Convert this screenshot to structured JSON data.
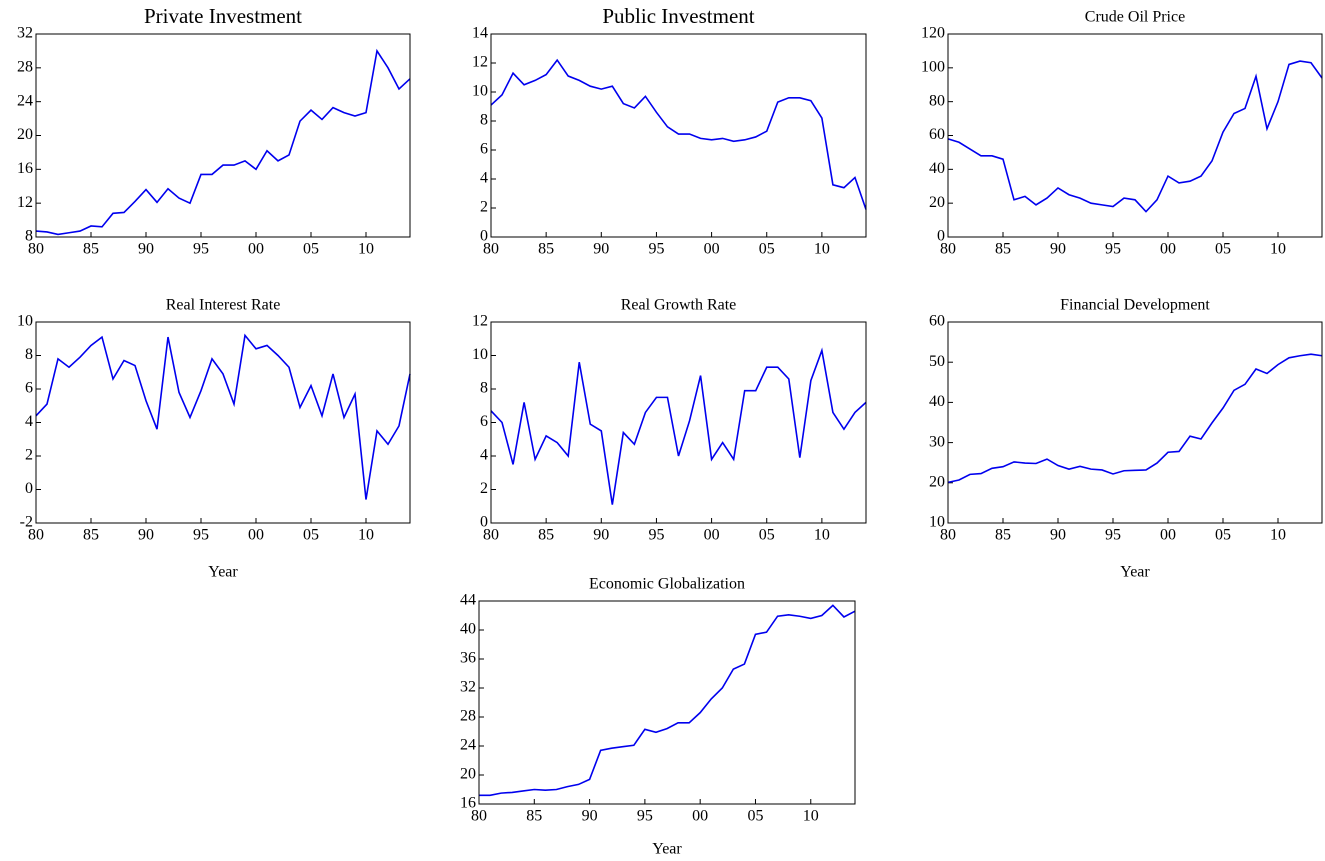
{
  "chart_data": [
    {
      "type": "line",
      "title": "Private Investment",
      "color": "#0000ee",
      "x": [
        1980,
        1981,
        1982,
        1983,
        1984,
        1985,
        1986,
        1987,
        1988,
        1989,
        1990,
        1991,
        1992,
        1993,
        1994,
        1995,
        1996,
        1997,
        1998,
        1999,
        2000,
        2001,
        2002,
        2003,
        2004,
        2005,
        2006,
        2007,
        2008,
        2009,
        2010,
        2011,
        2012,
        2013,
        2014
      ],
      "values": [
        8.7,
        8.6,
        8.3,
        8.5,
        8.7,
        9.3,
        9.2,
        10.8,
        10.9,
        12.2,
        13.6,
        12.1,
        13.7,
        12.6,
        12.0,
        15.4,
        15.4,
        16.5,
        16.5,
        17.0,
        16.0,
        18.2,
        17.0,
        17.7,
        21.7,
        23.0,
        21.9,
        23.3,
        22.7,
        22.3,
        22.7,
        30.0,
        28.0,
        25.5,
        26.7
      ],
      "xlim": [
        1980,
        2014
      ],
      "xticks": [
        {
          "value": 1980,
          "label": "80"
        },
        {
          "value": 1985,
          "label": "85"
        },
        {
          "value": 1990,
          "label": "90"
        },
        {
          "value": 1995,
          "label": "95"
        },
        {
          "value": 2000,
          "label": "00"
        },
        {
          "value": 2005,
          "label": "05"
        },
        {
          "value": 2010,
          "label": "10"
        }
      ],
      "ylim": [
        8,
        32
      ],
      "yticks": [
        8,
        12,
        16,
        20,
        24,
        28,
        32
      ]
    },
    {
      "type": "line",
      "title": "Public Investment",
      "color": "#0000ee",
      "x": [
        1980,
        1981,
        1982,
        1983,
        1984,
        1985,
        1986,
        1987,
        1988,
        1989,
        1990,
        1991,
        1992,
        1993,
        1994,
        1995,
        1996,
        1997,
        1998,
        1999,
        2000,
        2001,
        2002,
        2003,
        2004,
        2005,
        2006,
        2007,
        2008,
        2009,
        2010,
        2011,
        2012,
        2013,
        2014
      ],
      "values": [
        9.1,
        9.8,
        11.3,
        10.5,
        10.8,
        11.2,
        12.2,
        11.1,
        10.8,
        10.4,
        10.2,
        10.4,
        9.2,
        8.9,
        9.7,
        8.6,
        7.6,
        7.1,
        7.1,
        6.8,
        6.7,
        6.8,
        6.6,
        6.7,
        6.9,
        7.3,
        9.3,
        9.6,
        9.6,
        9.4,
        8.2,
        3.6,
        3.4,
        4.1,
        1.9
      ],
      "xlim": [
        1980,
        2014
      ],
      "xticks": [
        {
          "value": 1980,
          "label": "80"
        },
        {
          "value": 1985,
          "label": "85"
        },
        {
          "value": 1990,
          "label": "90"
        },
        {
          "value": 1995,
          "label": "95"
        },
        {
          "value": 2000,
          "label": "00"
        },
        {
          "value": 2005,
          "label": "05"
        },
        {
          "value": 2010,
          "label": "10"
        }
      ],
      "ylim": [
        0,
        14
      ],
      "yticks": [
        0,
        2,
        4,
        6,
        8,
        10,
        12,
        14
      ]
    },
    {
      "type": "line",
      "title": "Crude Oil Price",
      "color": "#0000ee",
      "x": [
        1980,
        1981,
        1982,
        1983,
        1984,
        1985,
        1986,
        1987,
        1988,
        1989,
        1990,
        1991,
        1992,
        1993,
        1994,
        1995,
        1996,
        1997,
        1998,
        1999,
        2000,
        2001,
        2002,
        2003,
        2004,
        2005,
        2006,
        2007,
        2008,
        2009,
        2010,
        2011,
        2012,
        2013,
        2014
      ],
      "values": [
        58,
        56,
        52,
        48,
        48,
        46,
        22,
        24,
        19,
        23,
        29,
        25,
        23,
        20,
        19,
        18,
        23,
        22,
        15,
        22,
        36,
        32,
        33,
        36,
        45,
        62,
        73,
        76,
        95,
        64,
        80,
        102,
        104,
        103,
        94
      ],
      "xlim": [
        1980,
        2014
      ],
      "xticks": [
        {
          "value": 1980,
          "label": "80"
        },
        {
          "value": 1985,
          "label": "85"
        },
        {
          "value": 1990,
          "label": "90"
        },
        {
          "value": 1995,
          "label": "95"
        },
        {
          "value": 2000,
          "label": "00"
        },
        {
          "value": 2005,
          "label": "05"
        },
        {
          "value": 2010,
          "label": "10"
        }
      ],
      "ylim": [
        0,
        120
      ],
      "yticks": [
        0,
        20,
        40,
        60,
        80,
        100,
        120
      ]
    },
    {
      "type": "line",
      "title": "Real Interest Rate",
      "xlabel": "Year",
      "color": "#0000ee",
      "x": [
        1980,
        1981,
        1982,
        1983,
        1984,
        1985,
        1986,
        1987,
        1988,
        1989,
        1990,
        1991,
        1992,
        1993,
        1994,
        1995,
        1996,
        1997,
        1998,
        1999,
        2000,
        2001,
        2002,
        2003,
        2004,
        2005,
        2006,
        2007,
        2008,
        2009,
        2010,
        2011,
        2012,
        2013,
        2014
      ],
      "values": [
        4.4,
        5.1,
        7.8,
        7.3,
        7.9,
        8.6,
        9.1,
        6.6,
        7.7,
        7.4,
        5.3,
        3.6,
        9.1,
        5.8,
        4.3,
        5.9,
        7.8,
        6.9,
        5.1,
        9.2,
        8.4,
        8.6,
        8.0,
        7.3,
        4.9,
        6.2,
        4.4,
        6.9,
        4.3,
        5.7,
        -0.6,
        3.5,
        2.7,
        3.8,
        6.9
      ],
      "xlim": [
        1980,
        2014
      ],
      "xticks": [
        {
          "value": 1980,
          "label": "80"
        },
        {
          "value": 1985,
          "label": "85"
        },
        {
          "value": 1990,
          "label": "90"
        },
        {
          "value": 1995,
          "label": "95"
        },
        {
          "value": 2000,
          "label": "00"
        },
        {
          "value": 2005,
          "label": "05"
        },
        {
          "value": 2010,
          "label": "10"
        }
      ],
      "ylim": [
        -2,
        10
      ],
      "yticks": [
        -2,
        0,
        2,
        4,
        6,
        8,
        10
      ]
    },
    {
      "type": "line",
      "title": "Real Growth Rate",
      "color": "#0000ee",
      "x": [
        1980,
        1981,
        1982,
        1983,
        1984,
        1985,
        1986,
        1987,
        1988,
        1989,
        1990,
        1991,
        1992,
        1993,
        1994,
        1995,
        1996,
        1997,
        1998,
        1999,
        2000,
        2001,
        2002,
        2003,
        2004,
        2005,
        2006,
        2007,
        2008,
        2009,
        2010,
        2011,
        2012,
        2013,
        2014
      ],
      "values": [
        6.7,
        6.0,
        3.5,
        7.2,
        3.8,
        5.2,
        4.8,
        4.0,
        9.6,
        5.9,
        5.5,
        1.1,
        5.4,
        4.7,
        6.6,
        7.5,
        7.5,
        4.0,
        6.1,
        8.8,
        3.8,
        4.8,
        3.8,
        7.9,
        7.9,
        9.3,
        9.3,
        8.6,
        3.9,
        8.5,
        10.3,
        6.6,
        5.6,
        6.6,
        7.2
      ],
      "xlim": [
        1980,
        2014
      ],
      "xticks": [
        {
          "value": 1980,
          "label": "80"
        },
        {
          "value": 1985,
          "label": "85"
        },
        {
          "value": 1990,
          "label": "90"
        },
        {
          "value": 1995,
          "label": "95"
        },
        {
          "value": 2000,
          "label": "00"
        },
        {
          "value": 2005,
          "label": "05"
        },
        {
          "value": 2010,
          "label": "10"
        }
      ],
      "ylim": [
        0,
        12
      ],
      "yticks": [
        0,
        2,
        4,
        6,
        8,
        10,
        12
      ]
    },
    {
      "type": "line",
      "title": "Financial Development",
      "xlabel": "Year",
      "color": "#0000ee",
      "x": [
        1980,
        1981,
        1982,
        1983,
        1984,
        1985,
        1986,
        1987,
        1988,
        1989,
        1990,
        1991,
        1992,
        1993,
        1994,
        1995,
        1996,
        1997,
        1998,
        1999,
        2000,
        2001,
        2002,
        2003,
        2004,
        2005,
        2006,
        2007,
        2008,
        2009,
        2010,
        2011,
        2012,
        2013,
        2014
      ],
      "values": [
        20.1,
        20.7,
        22.1,
        22.3,
        23.6,
        24.0,
        25.2,
        24.9,
        24.8,
        25.9,
        24.3,
        23.4,
        24.1,
        23.4,
        23.2,
        22.2,
        23.0,
        23.1,
        23.2,
        24.9,
        27.6,
        27.8,
        31.6,
        30.9,
        34.9,
        38.6,
        43.0,
        44.5,
        48.3,
        47.2,
        49.4,
        51.1,
        51.6,
        52.0,
        51.6
      ],
      "xlim": [
        1980,
        2014
      ],
      "xticks": [
        {
          "value": 1980,
          "label": "80"
        },
        {
          "value": 1985,
          "label": "85"
        },
        {
          "value": 1990,
          "label": "90"
        },
        {
          "value": 1995,
          "label": "95"
        },
        {
          "value": 2000,
          "label": "00"
        },
        {
          "value": 2005,
          "label": "05"
        },
        {
          "value": 2010,
          "label": "10"
        }
      ],
      "ylim": [
        10,
        60
      ],
      "yticks": [
        10,
        20,
        30,
        40,
        50,
        60
      ]
    },
    {
      "type": "line",
      "title": "Economic Globalization",
      "xlabel": "Year",
      "color": "#0000ee",
      "x": [
        1980,
        1981,
        1982,
        1983,
        1984,
        1985,
        1986,
        1987,
        1988,
        1989,
        1990,
        1991,
        1992,
        1993,
        1994,
        1995,
        1996,
        1997,
        1998,
        1999,
        2000,
        2001,
        2002,
        2003,
        2004,
        2005,
        2006,
        2007,
        2008,
        2009,
        2010,
        2011,
        2012,
        2013,
        2014
      ],
      "values": [
        17.2,
        17.2,
        17.5,
        17.6,
        17.8,
        18.0,
        17.9,
        18.0,
        18.4,
        18.7,
        19.4,
        23.4,
        23.7,
        23.9,
        24.1,
        26.3,
        25.9,
        26.4,
        27.2,
        27.2,
        28.6,
        30.5,
        32.0,
        34.6,
        35.3,
        39.4,
        39.7,
        41.9,
        42.1,
        41.9,
        41.6,
        42.0,
        43.4,
        41.8,
        42.6
      ],
      "xlim": [
        1980,
        2014
      ],
      "xticks": [
        {
          "value": 1980,
          "label": "80"
        },
        {
          "value": 1985,
          "label": "85"
        },
        {
          "value": 1990,
          "label": "90"
        },
        {
          "value": 1995,
          "label": "95"
        },
        {
          "value": 2000,
          "label": "00"
        },
        {
          "value": 2005,
          "label": "05"
        },
        {
          "value": 2010,
          "label": "10"
        }
      ],
      "ylim": [
        16,
        44
      ],
      "yticks": [
        16,
        20,
        24,
        28,
        32,
        36,
        40,
        44
      ]
    }
  ]
}
